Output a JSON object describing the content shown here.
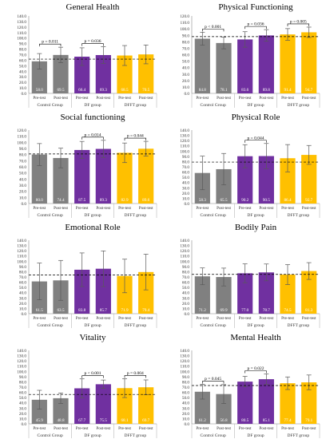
{
  "chart_data": [
    {
      "type": "bar",
      "title": "General Health",
      "categories": [
        "Pre-test",
        "Post-test",
        "Pre-test",
        "Post-test",
        "Pre-test",
        "Post-test"
      ],
      "groups": [
        "Control Group",
        "DF group",
        "DFFT group"
      ],
      "values": [
        58.0,
        69.5,
        66.4,
        69.3,
        68.5,
        70.5
      ],
      "value_labels": [
        "58.0",
        "69.5",
        "66.4",
        "69.3",
        "68.5",
        "70.5"
      ],
      "errors": [
        14,
        14,
        16,
        15,
        18,
        17
      ],
      "reference_line": 62,
      "annotations": [
        {
          "text": "p = 0.011",
          "pair": [
            0,
            1
          ]
        },
        {
          "text": "p = 0.036",
          "pair": [
            2,
            3
          ]
        }
      ],
      "ylim": [
        0,
        140
      ],
      "yticks": [
        "0.0",
        "10.0",
        "20.0",
        "30.0",
        "40.0",
        "50.0",
        "60.0",
        "70.0",
        "80.0",
        "90.0",
        "100.0",
        "110.0",
        "120.0",
        "130.0",
        "140.0"
      ]
    },
    {
      "type": "bar",
      "title": "Physical Functioning",
      "categories": [
        "Pre-test",
        "Post-test",
        "Pre-test",
        "Post-test",
        "Pre-test",
        "Post-test"
      ],
      "groups": [
        "Control Group",
        "DF group",
        "DFFT group"
      ],
      "values": [
        84.8,
        78.1,
        83.6,
        89.8,
        91.4,
        94.7
      ],
      "value_labels": [
        "84.8",
        "78.1",
        "83.6",
        "89.8",
        "91.4",
        "94.7"
      ],
      "errors": [
        10,
        9,
        12,
        9,
        9,
        8
      ],
      "reference_line": 88,
      "annotations": [
        {
          "text": "p < 0.001",
          "pair": [
            0,
            1
          ]
        },
        {
          "text": "p = 0.036",
          "pair": [
            2,
            3
          ]
        },
        {
          "text": "p = 0.005",
          "pair": [
            4,
            5
          ]
        }
      ],
      "ylim": [
        0,
        120
      ],
      "yticks": [
        "0.0",
        "10.0",
        "20.0",
        "30.0",
        "40.0",
        "50.0",
        "60.0",
        "70.0",
        "80.0",
        "90.0",
        "100.0",
        "110.0",
        "120.0"
      ]
    },
    {
      "type": "bar",
      "title": "Social functioning",
      "categories": [
        "Pre-test",
        "Post-test",
        "Pre-test",
        "Post-test",
        "Pre-test",
        "Post-test"
      ],
      "groups": [
        "Control Group",
        "DF group",
        "DFFT group"
      ],
      "values": [
        80.0,
        74.4,
        87.5,
        89.3,
        82.9,
        89.6
      ],
      "value_labels": [
        "80.0",
        "74.4",
        "87.5",
        "89.3",
        "82.9",
        "89.6"
      ],
      "errors": [
        18,
        16,
        14,
        14,
        16,
        12
      ],
      "reference_line": 81,
      "annotations": [
        {
          "text": "p = 0.014",
          "pair": [
            2,
            3
          ]
        },
        {
          "text": "p = 0.044",
          "pair": [
            4,
            5
          ]
        }
      ],
      "ylim": [
        0,
        120
      ],
      "yticks": [
        "0.0",
        "10.0",
        "20.0",
        "30.0",
        "40.0",
        "50.0",
        "60.0",
        "70.0",
        "80.0",
        "90.0",
        "100.0",
        "110.0",
        "120.0"
      ]
    },
    {
      "type": "bar",
      "title": "Physical Role",
      "categories": [
        "Pre-test",
        "Post-test",
        "Pre-test",
        "Post-test",
        "Pre-test",
        "Post-test"
      ],
      "groups": [
        "Control Group",
        "DF group",
        "DFFT group"
      ],
      "values": [
        58.3,
        65.5,
        90.2,
        90.5,
        86.4,
        92.7
      ],
      "value_labels": [
        "58.3",
        "65.5",
        "90.2",
        "90.5",
        "86.4",
        "92.7"
      ],
      "errors": [
        32,
        30,
        22,
        24,
        26,
        18
      ],
      "reference_line": 79,
      "annotations": [
        {
          "text": "p = 0.044",
          "pair": [
            2,
            3
          ]
        }
      ],
      "ylim": [
        0,
        140
      ],
      "yticks": [
        "0.0",
        "10.0",
        "20.0",
        "30.0",
        "40.0",
        "50.0",
        "60.0",
        "70.0",
        "80.0",
        "90.0",
        "100.0",
        "110.0",
        "120.0",
        "130.0",
        "140.0"
      ]
    },
    {
      "type": "bar",
      "title": "Emotional Role",
      "categories": [
        "Pre-test",
        "Post-test",
        "Pre-test",
        "Post-test",
        "Pre-test",
        "Post-test"
      ],
      "groups": [
        "Control Group",
        "DF group",
        "DFFT group"
      ],
      "values": [
        61.5,
        63.5,
        83.8,
        85.7,
        71.9,
        79.4
      ],
      "value_labels": [
        "61.5",
        "63.5",
        "83.8",
        "85.7",
        "71.9",
        "79.4"
      ],
      "errors": [
        35,
        38,
        32,
        34,
        32,
        34
      ],
      "reference_line": 74,
      "annotations": [],
      "ylim": [
        0,
        140
      ],
      "yticks": [
        "0.0",
        "10.0",
        "20.0",
        "30.0",
        "40.0",
        "50.0",
        "60.0",
        "70.0",
        "80.0",
        "90.0",
        "100.0",
        "110.0",
        "120.0",
        "130.0",
        "140.0"
      ]
    },
    {
      "type": "bar",
      "title": "Bodily Pain",
      "categories": [
        "Pre-test",
        "Post-test",
        "Pre-test",
        "Post-test",
        "Pre-test",
        "Post-test"
      ],
      "groups": [
        "Control Group",
        "DF group",
        "DFFT group"
      ],
      "values": [
        71.2,
        69.9,
        77.0,
        78.7,
        74.5,
        81.3
      ],
      "value_labels": [
        "71.2",
        "69.9",
        "77.0",
        "78.7",
        "74.5",
        "81.3"
      ],
      "errors": [
        16,
        17,
        18,
        16,
        19,
        16
      ],
      "reference_line": 75,
      "annotations": [],
      "ylim": [
        0,
        140
      ],
      "yticks": [
        "0.0",
        "10.0",
        "20.0",
        "30.0",
        "40.0",
        "50.0",
        "60.0",
        "70.0",
        "80.0",
        "90.0",
        "100.0",
        "110.0",
        "120.0",
        "130.0",
        "140.0"
      ]
    },
    {
      "type": "bar",
      "title": "Vitality",
      "categories": [
        "Pre-test",
        "Post-test",
        "Pre-test",
        "Post-test",
        "Pre-test",
        "Post-test"
      ],
      "groups": [
        "Control Group",
        "DF group",
        "DFFT group"
      ],
      "values": [
        45.9,
        48.8,
        67.7,
        75.5,
        68.1,
        69.7
      ],
      "value_labels": [
        "45.9",
        "48.8",
        "67.7",
        "75.5",
        "68.1",
        "69.7"
      ],
      "errors": [
        18,
        10,
        18,
        8,
        18,
        14
      ],
      "reference_line": 56,
      "annotations": [
        {
          "text": "p < 0.001",
          "pair": [
            2,
            3
          ]
        },
        {
          "text": "p = 0.004",
          "pair": [
            4,
            5
          ]
        }
      ],
      "ylim": [
        0,
        140
      ],
      "yticks": [
        "0.0",
        "10.0",
        "20.0",
        "30.0",
        "40.0",
        "50.0",
        "60.0",
        "70.0",
        "80.0",
        "90.0",
        "100.0",
        "110.0",
        "120.0",
        "130.0",
        "140.0"
      ]
    },
    {
      "type": "bar",
      "title": "Mental Health",
      "categories": [
        "Pre-test",
        "Post-test",
        "Pre-test",
        "Post-test",
        "Pre-test",
        "Post-test"
      ],
      "groups": [
        "Control Group",
        "DF group",
        "DFFT group"
      ],
      "values": [
        61.2,
        56.8,
        80.5,
        85.1,
        77.4,
        79.1
      ],
      "value_labels": [
        "61.2",
        "56.8",
        "80.5",
        "85.1",
        "77.4",
        "79.1"
      ],
      "errors": [
        14,
        18,
        10,
        10,
        12,
        14
      ],
      "reference_line": 73,
      "annotations": [
        {
          "text": "p = 0.045",
          "pair": [
            0,
            1
          ]
        },
        {
          "text": "p = 0.022",
          "pair": [
            2,
            3
          ]
        }
      ],
      "ylim": [
        0,
        140
      ],
      "yticks": [
        "0.0",
        "10.0",
        "20.0",
        "30.0",
        "40.0",
        "50.0",
        "60.0",
        "70.0",
        "80.0",
        "90.0",
        "100.0",
        "110.0",
        "120.0",
        "130.0",
        "140.0"
      ]
    }
  ],
  "colors": {
    "control": "#808080",
    "df": "#7030a0",
    "dfft": "#ffc000",
    "error_bar": "#595959",
    "reference_line": "#000000",
    "bar_value_text": "#ffffff"
  }
}
